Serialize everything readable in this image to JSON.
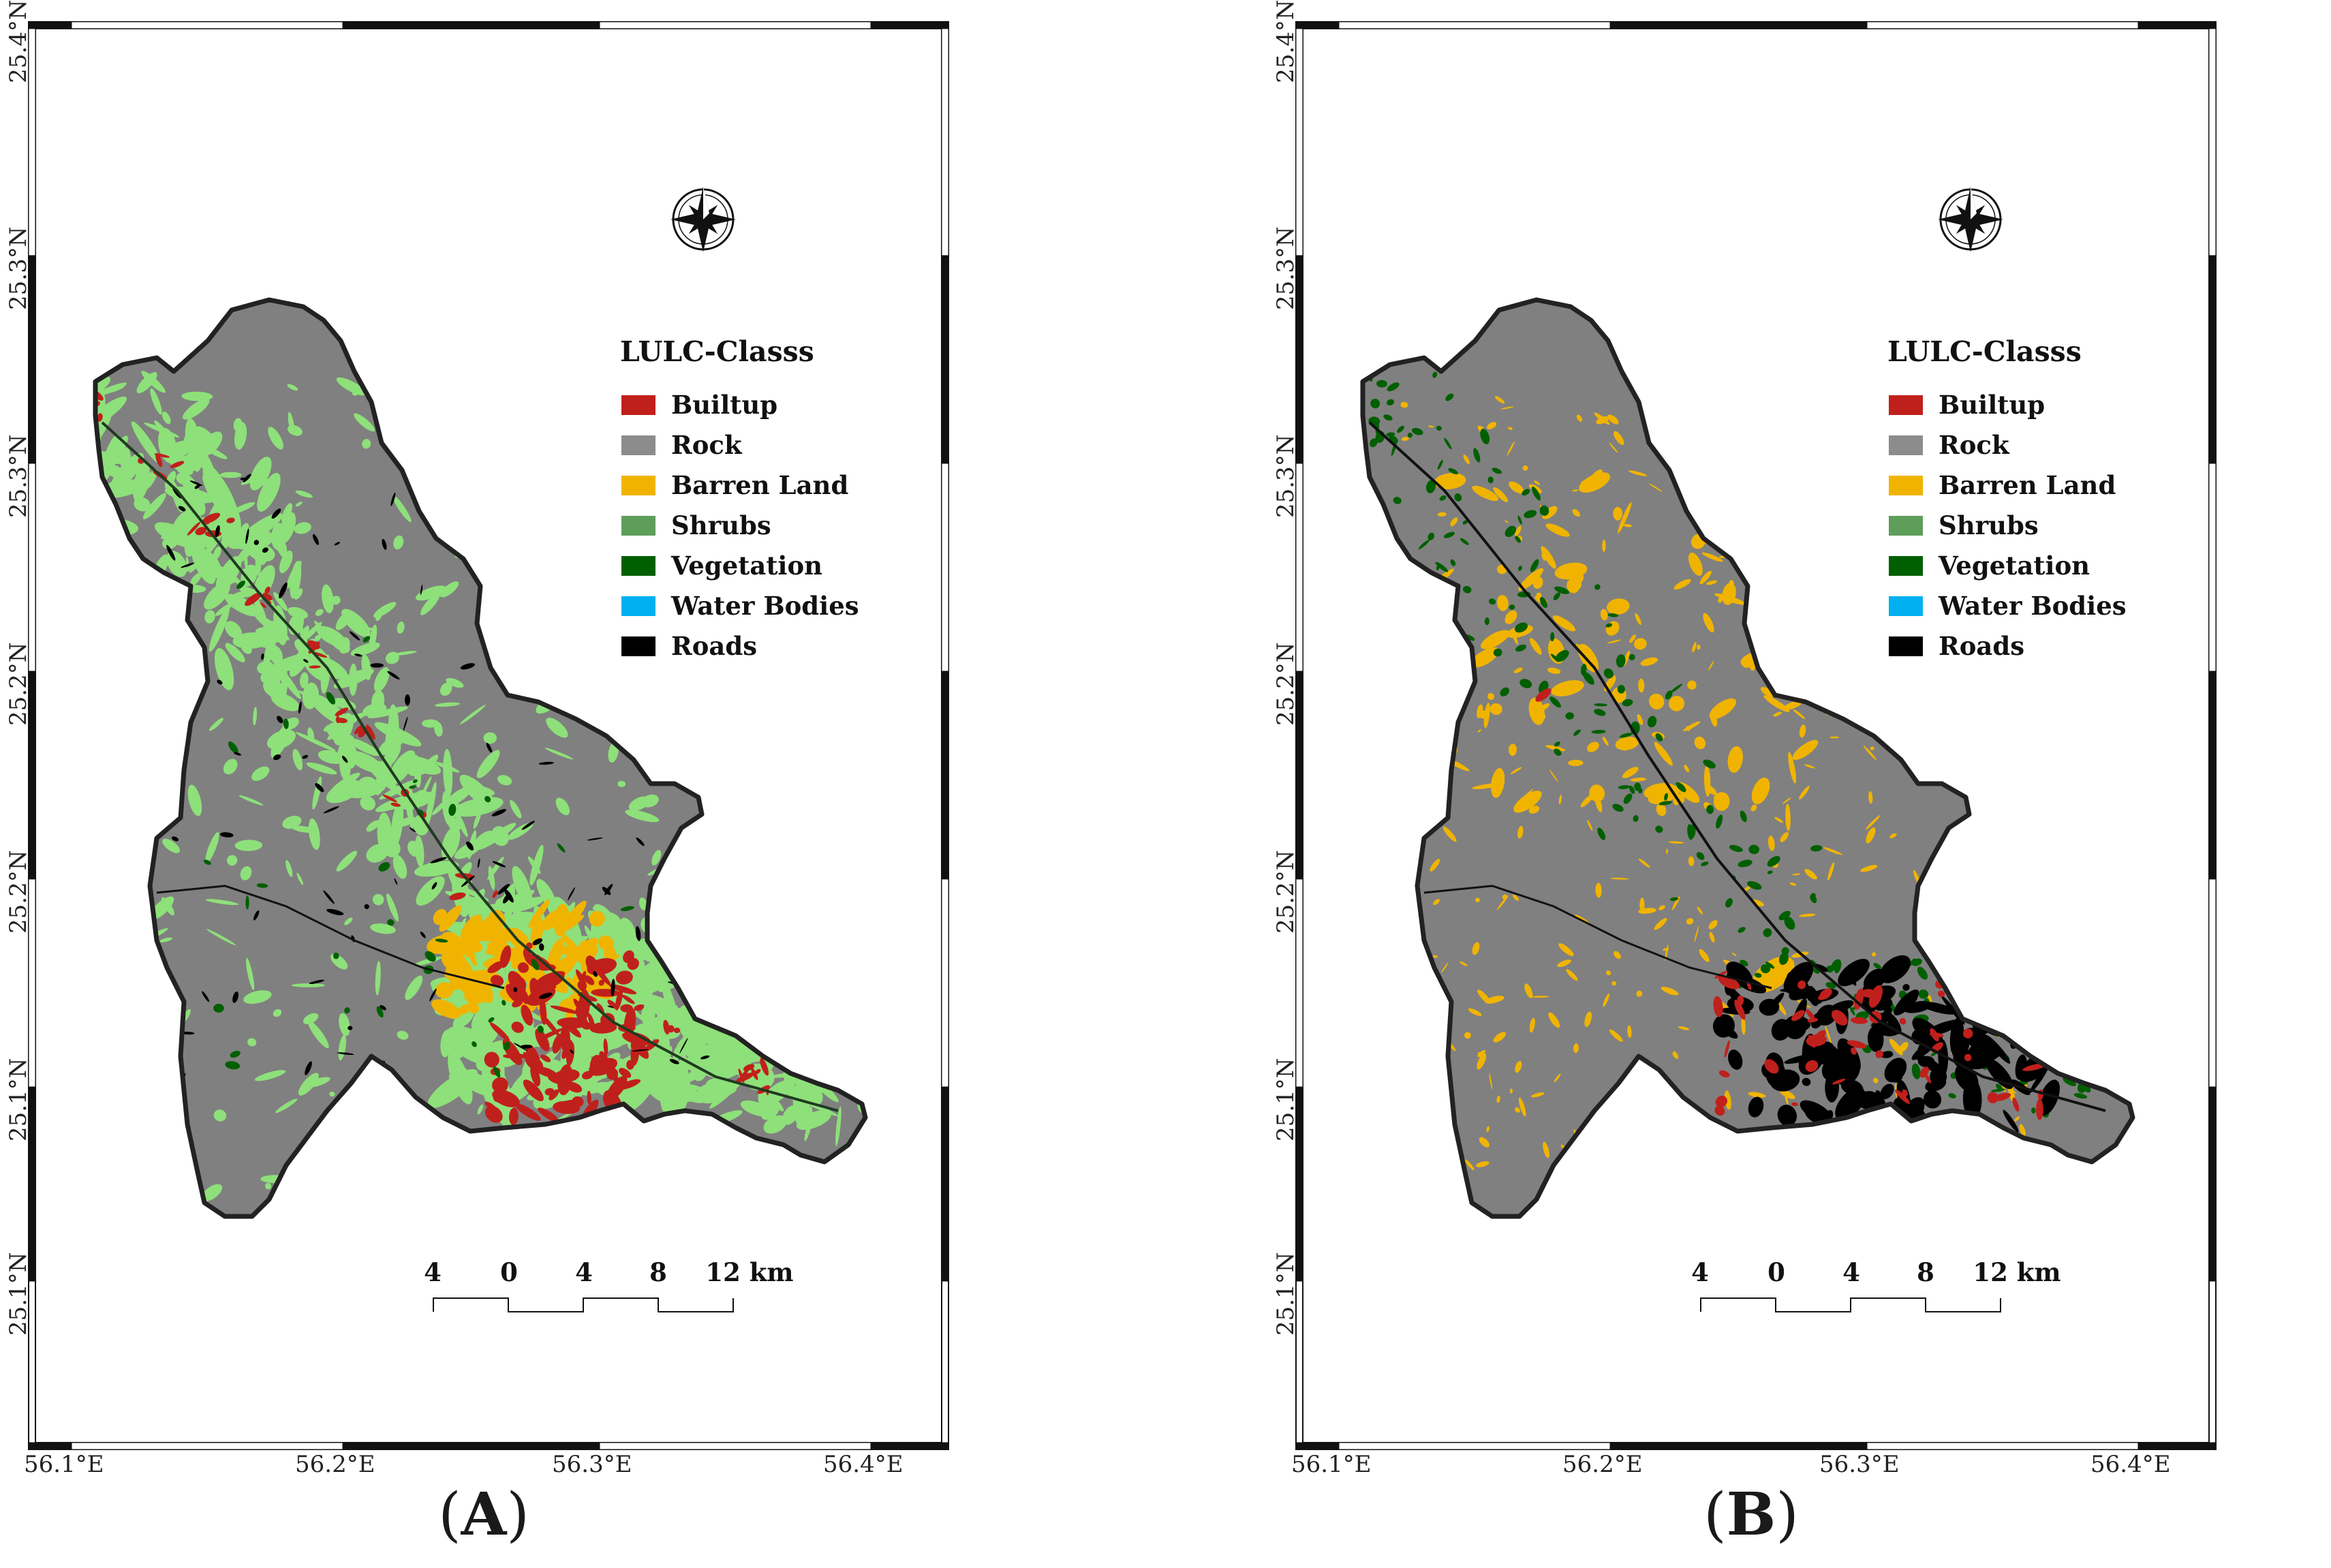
{
  "panels": [
    {
      "label": "A",
      "map_style": "A"
    },
    {
      "label": "B",
      "map_style": "B"
    }
  ],
  "lat_labels": [
    "25.4°N",
    "25.3°N",
    "25.3°N",
    "25.2°N",
    "25.2°N",
    "25.1°N",
    "25.1°N"
  ],
  "lon_labels": [
    "56.1°E",
    "56.2°E",
    "56.3°E",
    "56.4°E"
  ],
  "legend": {
    "title": "LULC-Classs",
    "items": [
      {
        "label": "Builtup",
        "color": "#c0201c"
      },
      {
        "label": "Rock",
        "color": "#8c8c8c"
      },
      {
        "label": "Barren Land",
        "color": "#f0b400"
      },
      {
        "label": "Shrubs",
        "color": "#5e9e5a"
      },
      {
        "label": "Vegetation",
        "color": "#005f00"
      },
      {
        "label": "Water Bodies",
        "color": "#00b0f0"
      },
      {
        "label": "Roads",
        "color": "#000000"
      }
    ]
  },
  "scale_bar": {
    "labels": [
      "4",
      "0",
      "4",
      "8",
      "12 km"
    ]
  },
  "north_arrow": {
    "icon": "compass-rose-icon"
  },
  "colors": {
    "rock": "#808080",
    "border": "#222222",
    "light_green": "#8ee07a"
  }
}
